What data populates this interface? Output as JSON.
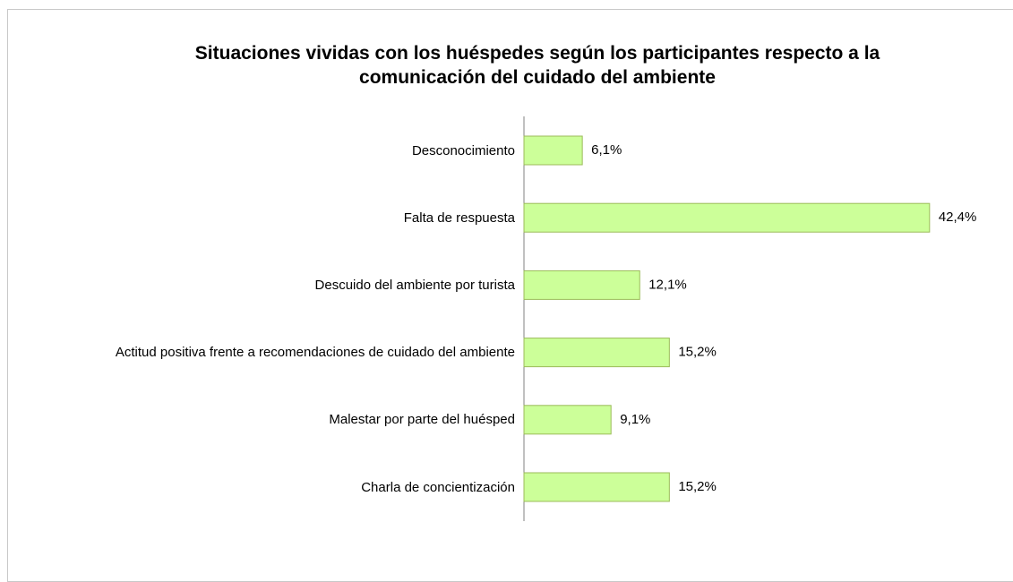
{
  "chart_data": {
    "type": "bar",
    "orientation": "horizontal",
    "title": "Situaciones vividas con los huéspedes según los participantes respecto a la comunicación del cuidado del ambiente",
    "categories": [
      "Desconocimiento",
      "Falta de respuesta",
      "Descuido del ambiente por turista",
      "Actitud positiva frente a recomendaciones de cuidado del ambiente",
      "Malestar por parte del huésped",
      "Charla de concientización"
    ],
    "values": [
      6.1,
      42.4,
      12.1,
      15.2,
      9.1,
      15.2
    ],
    "value_labels": [
      "6,1%",
      "42,4%",
      "12,1%",
      "15,2%",
      "9,1%",
      "15,2%"
    ],
    "color": "#ccff99"
  }
}
